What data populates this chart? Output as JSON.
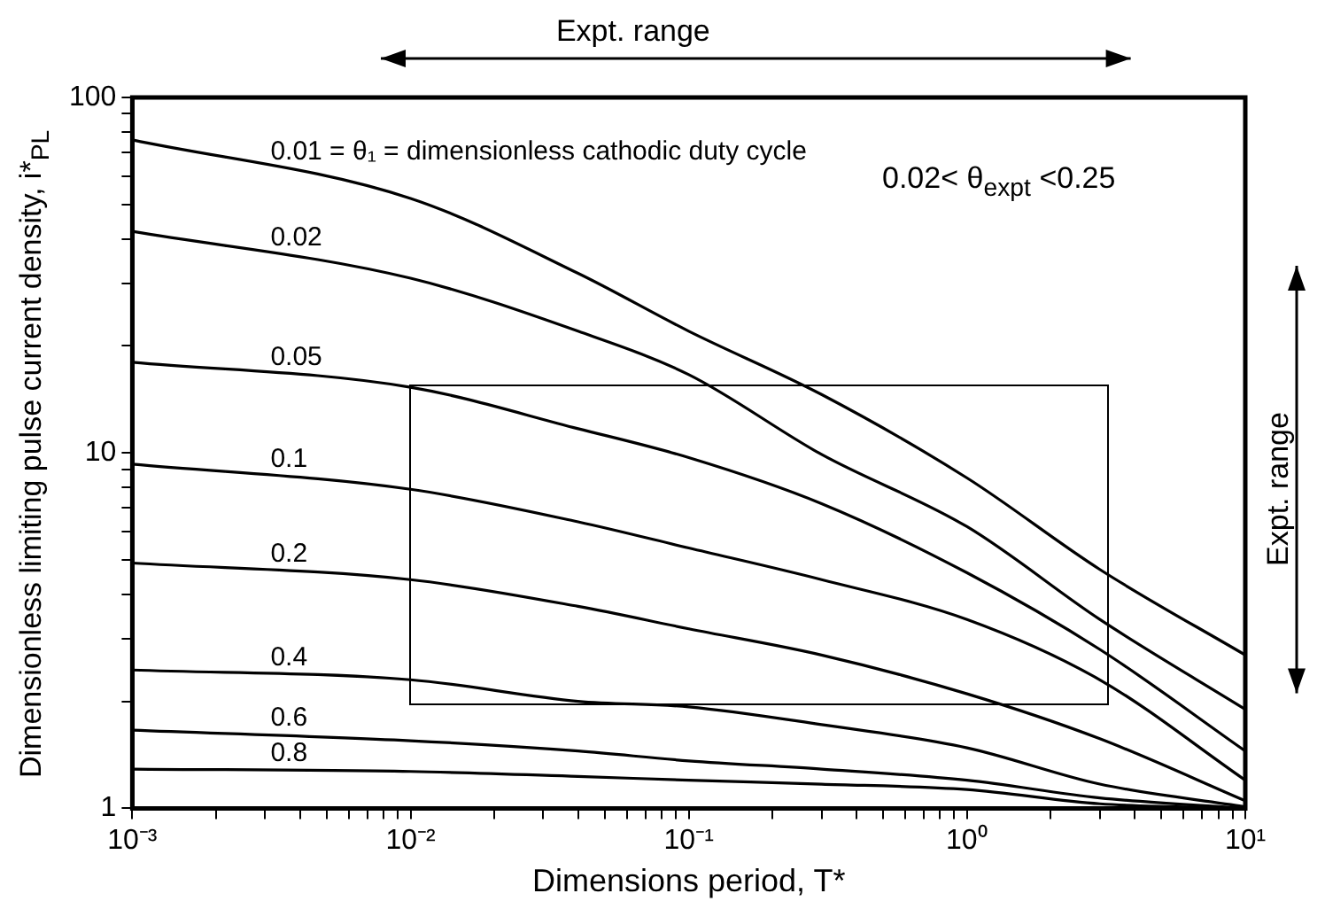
{
  "chart_data": {
    "type": "line",
    "xlabel": "Dimensions period, T*",
    "ylabel": "Dimensionless limiting pulse current density, i*$_{PL}$",
    "x": [
      0.001,
      0.01,
      0.04,
      0.1,
      0.3,
      1,
      3,
      10
    ],
    "series": [
      {
        "name": "0.01 = θ₁ = dimensionless cathodic duty cycle",
        "color": "#000000",
        "values": [
          76,
          52,
          32,
          22,
          14.6,
          8.5,
          4.7,
          2.7
        ]
      },
      {
        "name": "0.02",
        "color": "#000000",
        "values": [
          42,
          31,
          22,
          16.6,
          9.9,
          6.2,
          3.4,
          1.9
        ]
      },
      {
        "name": "0.05",
        "color": "#000000",
        "values": [
          18,
          15.3,
          11.7,
          9.7,
          7.2,
          4.6,
          2.8,
          1.45
        ]
      },
      {
        "name": "0.1",
        "color": "#000000",
        "values": [
          9.3,
          7.9,
          6.4,
          5.4,
          4.4,
          3.4,
          2.3,
          1.2
        ]
      },
      {
        "name": "0.2",
        "color": "#000000",
        "values": [
          4.9,
          4.4,
          3.7,
          3.2,
          2.7,
          2.1,
          1.57,
          1.05
        ]
      },
      {
        "name": "0.4",
        "color": "#000000",
        "values": [
          2.45,
          2.3,
          2.0,
          1.93,
          1.72,
          1.48,
          1.17,
          1.01
        ]
      },
      {
        "name": "0.6",
        "color": "#000000",
        "values": [
          1.66,
          1.55,
          1.45,
          1.36,
          1.29,
          1.2,
          1.07,
          1.0
        ]
      },
      {
        "name": "0.8",
        "color": "#000000",
        "values": [
          1.29,
          1.27,
          1.23,
          1.2,
          1.17,
          1.13,
          1.03,
          1.0
        ]
      }
    ],
    "log": "xy",
    "xlim": [
      0.001,
      10
    ],
    "ylim": [
      1,
      100
    ],
    "xticks": [
      {
        "value": 0.001,
        "label": "10⁻³"
      },
      {
        "value": 0.002,
        "label": null
      },
      {
        "value": 0.003,
        "label": null
      },
      {
        "value": 0.004,
        "label": null
      },
      {
        "value": 0.005,
        "label": null
      },
      {
        "value": 0.006,
        "label": null
      },
      {
        "value": 0.007,
        "label": null
      },
      {
        "value": 0.008,
        "label": null
      },
      {
        "value": 0.009,
        "label": null
      },
      {
        "value": 0.01,
        "label": "10⁻²"
      },
      {
        "value": 0.02,
        "label": null
      },
      {
        "value": 0.03,
        "label": null
      },
      {
        "value": 0.04,
        "label": null
      },
      {
        "value": 0.05,
        "label": null
      },
      {
        "value": 0.06,
        "label": null
      },
      {
        "value": 0.07,
        "label": null
      },
      {
        "value": 0.08,
        "label": null
      },
      {
        "value": 0.09,
        "label": null
      },
      {
        "value": 0.1,
        "label": "10⁻¹"
      },
      {
        "value": 0.2,
        "label": null
      },
      {
        "value": 0.3,
        "label": null
      },
      {
        "value": 0.4,
        "label": null
      },
      {
        "value": 0.5,
        "label": null
      },
      {
        "value": 0.6,
        "label": null
      },
      {
        "value": 0.7,
        "label": null
      },
      {
        "value": 0.8,
        "label": null
      },
      {
        "value": 0.9,
        "label": null
      },
      {
        "value": 1,
        "label": "10⁰"
      },
      {
        "value": 2,
        "label": null
      },
      {
        "value": 3,
        "label": null
      },
      {
        "value": 4,
        "label": null
      },
      {
        "value": 5,
        "label": null
      },
      {
        "value": 6,
        "label": null
      },
      {
        "value": 7,
        "label": null
      },
      {
        "value": 8,
        "label": null
      },
      {
        "value": 9,
        "label": null
      },
      {
        "value": 10,
        "label": "10¹"
      }
    ],
    "yticks": [
      1,
      {
        "value": 2,
        "label": null
      },
      {
        "value": 3,
        "label": null
      },
      {
        "value": 4,
        "label": null
      },
      {
        "value": 5,
        "label": null
      },
      {
        "value": 6,
        "label": null
      },
      {
        "value": 7,
        "label": null
      },
      {
        "value": 8,
        "label": null
      },
      {
        "value": 9,
        "label": null
      },
      10,
      {
        "value": 20,
        "label": null
      },
      {
        "value": 30,
        "label": null
      },
      {
        "value": 40,
        "label": null
      },
      {
        "value": 50,
        "label": null
      },
      {
        "value": 60,
        "label": null
      },
      {
        "value": 70,
        "label": null
      },
      {
        "value": 80,
        "label": null
      },
      {
        "value": 90,
        "label": null
      },
      100
    ],
    "grid": false,
    "legend": false,
    "marker": "none",
    "line_style": "solid",
    "annotations": [
      "Expt. range",
      "Expt. range",
      "0.02< θ$_{expt}$ <0.25"
    ]
  }
}
